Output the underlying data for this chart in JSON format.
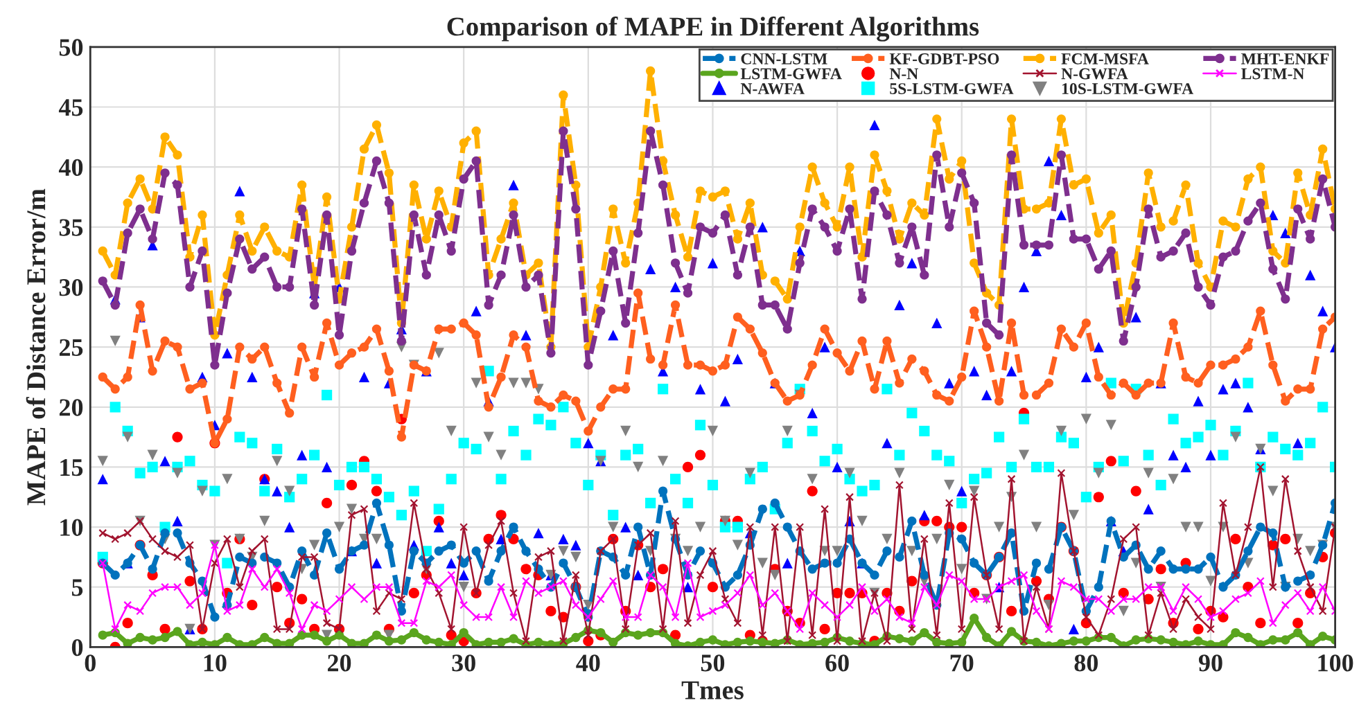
{
  "chart_data": {
    "type": "line",
    "title": "Comparison of MAPE in Different Algorithms",
    "xlabel": "Tmes",
    "ylabel": "MAPE of Distance Error/m",
    "x": [
      1,
      2,
      3,
      4,
      5,
      6,
      7,
      8,
      9,
      10,
      11,
      12,
      13,
      14,
      15,
      16,
      17,
      18,
      19,
      20,
      21,
      22,
      23,
      24,
      25,
      26,
      27,
      28,
      29,
      30,
      31,
      32,
      33,
      34,
      35,
      36,
      37,
      38,
      39,
      40,
      41,
      42,
      43,
      44,
      45,
      46,
      47,
      48,
      49,
      50,
      51,
      52,
      53,
      54,
      55,
      56,
      57,
      58,
      59,
      60,
      61,
      62,
      63,
      64,
      65,
      66,
      67,
      68,
      69,
      70,
      71,
      72,
      73,
      74,
      75,
      76,
      77,
      78,
      79,
      80,
      81,
      82,
      83,
      84,
      85,
      86,
      87,
      88,
      89,
      90,
      91,
      92,
      93,
      94,
      95,
      96,
      97,
      98,
      99,
      100
    ],
    "xlim": [
      0,
      100
    ],
    "xticks": [
      0,
      10,
      20,
      30,
      40,
      50,
      60,
      70,
      80,
      90,
      100
    ],
    "ylim": [
      0,
      50
    ],
    "yticks": [
      0,
      5,
      10,
      15,
      20,
      25,
      30,
      35,
      40,
      45,
      50
    ],
    "grid": true,
    "legend": "top right",
    "series": [
      {
        "name": "CNN-LSTM",
        "color": "#0072bd",
        "line_style": "dashed",
        "marker": "circle",
        "values": [
          7,
          6,
          7,
          8.5,
          6.5,
          9.5,
          9.5,
          7,
          5.5,
          2.5,
          3.5,
          7.5,
          7,
          7.5,
          7,
          5,
          8,
          6,
          9.5,
          6.5,
          8,
          8.5,
          12,
          8.5,
          3,
          8,
          7,
          8,
          8.5,
          7,
          8,
          5.5,
          8,
          10,
          8,
          6.5,
          5,
          7,
          5,
          2.5,
          8,
          7.5,
          6,
          10,
          6,
          13,
          9,
          6,
          8,
          7,
          5,
          6,
          8.5,
          11.5,
          12,
          10,
          8,
          6.5,
          7,
          7,
          9,
          7,
          6,
          8,
          7.5,
          10.5,
          6,
          3.5,
          9.5,
          9,
          7,
          6,
          7.5,
          9.5,
          3,
          7,
          6.5,
          10,
          8,
          3,
          5,
          10.5,
          7.5,
          8.5,
          6.5,
          8,
          6.5,
          6.5,
          6.5,
          7.5,
          5,
          6,
          8,
          10,
          9.5,
          5,
          5.5,
          6,
          8.5,
          12
        ]
      },
      {
        "name": "KF-GDBT-PSO",
        "color": "#ff5f1f",
        "line_style": "dashed",
        "marker": "circle",
        "values": [
          22.5,
          21.5,
          22.5,
          28.5,
          23,
          25.5,
          25,
          21.5,
          22,
          17,
          19,
          25,
          24,
          25,
          22,
          19.5,
          25,
          22.5,
          27,
          23.5,
          24.5,
          25,
          26.5,
          23,
          17.5,
          23.5,
          23,
          26.5,
          26.5,
          27,
          26,
          20,
          22.5,
          26,
          25,
          20.5,
          20,
          21,
          20.5,
          18,
          20,
          21.5,
          21.5,
          29.5,
          24,
          23.5,
          28.5,
          23.5,
          23.5,
          23,
          23.5,
          27.5,
          26.5,
          24.5,
          22,
          20.5,
          21,
          23.5,
          26.5,
          24.5,
          23,
          25.5,
          21.5,
          25.5,
          22,
          24,
          23,
          21,
          20.5,
          22.5,
          28,
          25,
          20.5,
          27,
          21,
          21,
          22,
          26.5,
          25,
          27,
          22.5,
          21,
          22,
          21,
          22,
          22,
          27,
          22.5,
          22,
          23.5,
          23.5,
          24,
          25,
          28,
          23.5,
          20.5,
          21.5,
          21.5,
          26.5,
          27.5
        ]
      },
      {
        "name": "FCM-MSFA",
        "color": "#ffb000",
        "line_style": "dashed",
        "marker": "circle",
        "values": [
          33,
          31,
          37,
          39,
          36.5,
          42.5,
          41,
          32.5,
          36,
          26,
          31,
          36,
          33,
          35,
          33,
          32.5,
          38.5,
          30,
          37.5,
          29,
          35,
          41.5,
          43.5,
          39.5,
          27,
          38.5,
          34,
          38,
          35,
          42,
          43,
          31,
          34,
          37,
          31,
          32,
          25,
          46,
          38.5,
          25,
          30,
          36.5,
          32,
          37,
          48,
          40.5,
          36,
          32.5,
          38,
          37.5,
          38,
          34,
          37,
          31,
          30.5,
          29,
          35,
          40,
          37,
          35,
          40,
          32.5,
          41,
          38,
          34,
          37,
          36,
          44,
          39,
          40.5,
          32,
          29.5,
          28.5,
          44,
          36.5,
          36.5,
          37,
          44,
          38.5,
          39,
          34.5,
          36,
          27,
          32,
          39.5,
          35,
          35.5,
          38.5,
          32,
          30,
          35.5,
          35,
          39,
          40,
          33,
          32,
          39.5,
          36,
          41.5,
          36.5
        ]
      },
      {
        "name": "MHT-ENKF",
        "color": "#7e2f8e",
        "line_style": "dashed",
        "marker": "circle",
        "values": [
          30.5,
          28.5,
          34.5,
          36.5,
          34,
          39.5,
          38.5,
          30,
          33,
          23.5,
          29.5,
          34,
          31.5,
          32.5,
          30,
          30,
          36.5,
          28.5,
          36,
          26,
          33,
          37,
          40.5,
          37,
          25.5,
          36,
          31,
          36,
          33,
          39,
          40.5,
          28.5,
          31,
          36,
          30,
          31,
          24.5,
          43,
          36.5,
          23.5,
          28,
          33,
          27,
          34.5,
          43,
          38.5,
          32,
          29.5,
          35,
          34.5,
          36,
          31,
          35,
          28.5,
          28.5,
          26.5,
          32,
          36.5,
          35,
          33,
          36.5,
          29,
          38,
          36,
          32,
          35,
          31,
          41,
          35,
          39.5,
          37,
          27,
          26,
          41,
          33.5,
          33.5,
          33.5,
          41,
          34,
          34,
          31.5,
          33,
          25.5,
          30,
          36.5,
          32.5,
          33,
          34.5,
          30,
          28.5,
          32.5,
          33,
          35.5,
          37,
          31.5,
          29,
          36.5,
          34,
          39,
          35
        ]
      },
      {
        "name": "LSTM-GWFA",
        "color": "#5aa51e",
        "line_style": "solid",
        "marker": "circle",
        "values": [
          1,
          1.2,
          0.3,
          0.8,
          0.6,
          0.8,
          1.3,
          0.2,
          0.4,
          0.2,
          0.8,
          0.2,
          0.2,
          0.8,
          0.3,
          0.3,
          1,
          1,
          0.5,
          1,
          0.3,
          0.3,
          1,
          0.5,
          0.6,
          1.2,
          0.6,
          0.4,
          0.2,
          1.2,
          0.2,
          0.4,
          0.4,
          0.7,
          0.2,
          0.4,
          0.2,
          0.3,
          0.8,
          1.4,
          1.2,
          0.4,
          1.2,
          1,
          1.2,
          1.2,
          0.3,
          0.1,
          0.4,
          0.6,
          0.2,
          0.4,
          0.5,
          0.4,
          0.3,
          0.6,
          0.2,
          0.3,
          0.4,
          0.8,
          0.5,
          0.3,
          0.2,
          0.9,
          0.7,
          0.5,
          1.2,
          0.4,
          0.3,
          0.4,
          2.4,
          0.8,
          0.1,
          1.3,
          0.5,
          0.4,
          0.1,
          0.3,
          0.5,
          0.5,
          0.8,
          0.8,
          0.1,
          0.6,
          0.7,
          0.6,
          0.4,
          0.2,
          0.5,
          0.2,
          0.2,
          1.2,
          0.8,
          0.2,
          0.6,
          0.6,
          1.2,
          0.2,
          0.9,
          0.6
        ]
      },
      {
        "name": "N-N",
        "type": "scatter",
        "color": "#ff0000",
        "marker": "circle",
        "values": [
          7,
          0,
          2,
          8.5,
          6,
          1.5,
          17.5,
          5.5,
          1.5,
          17,
          4.5,
          9,
          3.5,
          14,
          5,
          2,
          4,
          1.5,
          12,
          1.5,
          13.5,
          15.5,
          13,
          1.5,
          19,
          4.5,
          6,
          10.5,
          1,
          0.5,
          4.5,
          9,
          11,
          9,
          6.5,
          6,
          3,
          2.5,
          5,
          0.5,
          1,
          9,
          3,
          8.5,
          5,
          6.5,
          1,
          15,
          16,
          5,
          10.5,
          10.5,
          1,
          0.5,
          6.5,
          3,
          2,
          13,
          1.5,
          4.5,
          4.5,
          4.5,
          0.5,
          4.5,
          3,
          5.5,
          10.5,
          10.5,
          10,
          10,
          4.5,
          6,
          7.5,
          3,
          19.5,
          5.5,
          4,
          10,
          8,
          2,
          12.5,
          15.5,
          4.5,
          13,
          4,
          6.5,
          2,
          7,
          1.5,
          3,
          2.5,
          9,
          5,
          2,
          8.5,
          9,
          2,
          4.5,
          7.5,
          9.5
        ]
      },
      {
        "name": "N-GWFA",
        "color": "#a2142f",
        "line_style": "solid",
        "marker": "cross",
        "values": [
          9.5,
          9,
          9.5,
          10.5,
          9,
          8,
          7.5,
          8.5,
          1.5,
          7,
          9,
          5,
          8,
          9,
          1.5,
          1.5,
          7.5,
          7.5,
          2,
          1.5,
          11,
          11.5,
          3,
          4.5,
          4,
          12,
          6.5,
          4.5,
          1.5,
          10,
          4.5,
          8.5,
          10.5,
          4.5,
          0.5,
          7.5,
          8,
          0.5,
          6,
          1,
          8,
          9,
          1.5,
          8.5,
          9.5,
          1.5,
          10.5,
          2,
          6,
          8,
          4,
          2,
          10,
          1,
          10,
          0.5,
          10,
          1,
          11.5,
          0.5,
          12.5,
          0.5,
          4.5,
          0.5,
          13.5,
          1.5,
          9,
          1,
          12,
          1.5,
          12.5,
          6,
          1.5,
          14,
          0.5,
          5,
          1.5,
          14.5,
          8,
          2.5,
          1,
          4,
          9,
          10,
          1,
          4.5,
          1.5,
          4,
          2.5,
          1.5,
          12,
          6,
          10,
          15,
          5,
          14,
          8,
          5,
          3,
          10
        ]
      },
      {
        "name": "LSTM-N",
        "color": "#ff00ff",
        "line_style": "solid",
        "marker": "cross",
        "values": [
          7,
          1.5,
          3.5,
          3,
          4.5,
          5,
          5,
          3.5,
          4.5,
          8.5,
          3,
          3.5,
          6.5,
          5,
          6.5,
          4.5,
          1.5,
          3.5,
          3,
          4,
          5,
          4,
          5,
          5,
          2,
          2,
          5.5,
          5,
          6,
          3.5,
          2.5,
          2.5,
          5,
          2.5,
          5.5,
          4.5,
          5,
          5.5,
          3.5,
          2.5,
          4,
          5.5,
          2.5,
          2.5,
          6,
          5,
          2.5,
          7,
          2.5,
          3,
          3.5,
          4.5,
          6,
          3.5,
          4.5,
          3,
          1.5,
          4.5,
          3.5,
          2.5,
          3.5,
          5,
          3,
          4,
          2.5,
          2,
          5,
          3.5,
          6,
          5.5,
          4,
          4,
          5,
          5.5,
          6,
          3,
          1.5,
          5.5,
          5,
          4,
          4,
          3,
          4,
          4,
          5,
          5,
          3,
          5,
          4,
          2.5,
          3,
          4,
          4.5,
          5.5,
          2,
          3.5,
          4.5,
          3,
          5,
          3
        ]
      },
      {
        "name": "N-AWFA",
        "type": "scatter",
        "color": "#0000ff",
        "marker": "triangle",
        "values": [
          14,
          29,
          7,
          27.5,
          33.5,
          15.5,
          10.5,
          1.5,
          22.5,
          18.5,
          24.5,
          38,
          22.5,
          14,
          13,
          10,
          16,
          29.5,
          15,
          30,
          8,
          22.5,
          7,
          22,
          26.5,
          8.5,
          23,
          10,
          7,
          6,
          28,
          20.5,
          9,
          38.5,
          26,
          9.5,
          6,
          9,
          8.5,
          17,
          15.5,
          26,
          10,
          6,
          31.5,
          23,
          30,
          5,
          21.5,
          32,
          20.5,
          24,
          9.5,
          35,
          22,
          7,
          33,
          19.5,
          25,
          15,
          10.5,
          7,
          43.5,
          17,
          28.5,
          32,
          11,
          27,
          22,
          13,
          23,
          21,
          5,
          23,
          30,
          33,
          40.5,
          36,
          1.5,
          22.5,
          25,
          10.5,
          8,
          27.5,
          11.5,
          22,
          16,
          15,
          20.5,
          16,
          21.5,
          22,
          20,
          16.5,
          36,
          34.5,
          17,
          31,
          28,
          25
        ]
      },
      {
        "name": "5S-LSTM-GWFA",
        "type": "scatter",
        "color": "#00ffff",
        "marker": "square",
        "values": [
          7.5,
          20,
          18,
          14.5,
          15,
          10,
          15,
          15.5,
          13.5,
          13,
          7,
          17.5,
          17,
          13,
          16.5,
          12.5,
          14,
          16,
          21,
          13.5,
          15,
          15,
          14,
          12.5,
          11,
          13,
          8,
          11.5,
          14,
          17,
          16.5,
          23,
          14,
          18,
          16,
          19,
          18.5,
          20,
          17,
          13.5,
          16,
          11,
          16,
          16.5,
          12,
          21.5,
          14,
          12,
          18.5,
          13.5,
          10,
          10,
          14,
          15,
          11.5,
          17,
          21.5,
          18,
          15.5,
          16.5,
          14,
          13,
          13.5,
          21.5,
          16,
          19.5,
          18,
          16,
          15.5,
          12,
          14,
          14.5,
          17.5,
          15,
          19,
          15,
          15,
          17.5,
          17,
          12.5,
          15,
          22,
          15.5,
          21.5,
          16,
          13.5,
          19,
          17,
          17.5,
          18.5,
          16,
          18,
          22,
          15,
          17.5,
          16.5,
          16,
          17,
          20,
          15
        ]
      },
      {
        "name": "10S-LSTM-GWFA",
        "type": "scatter",
        "color": "#808080",
        "marker": "triangle_down",
        "values": [
          15.5,
          25.5,
          17.5,
          10.5,
          16,
          9,
          14.5,
          1.5,
          13,
          8.5,
          14,
          9,
          7.5,
          10.5,
          15.5,
          13,
          6.5,
          8.5,
          1,
          10,
          11.5,
          9,
          9,
          1,
          25,
          23.5,
          6.5,
          24.5,
          18,
          5,
          22,
          17.5,
          16,
          22,
          22,
          21.5,
          6,
          8,
          7.5,
          3.5,
          15.5,
          10,
          18,
          15,
          8,
          15.5,
          9,
          8,
          10,
          18,
          10.5,
          8.5,
          14.5,
          7,
          6,
          18,
          21,
          14,
          8,
          8,
          14.5,
          10.5,
          4.5,
          9,
          14.5,
          8,
          5.5,
          9,
          13.5,
          6.5,
          13,
          4,
          10,
          12.5,
          16,
          10,
          3.5,
          18,
          11,
          19,
          14.5,
          18.5,
          3,
          7,
          14.5,
          5,
          14,
          10,
          10,
          5.5,
          10,
          17.5,
          7,
          16.5,
          13,
          5,
          9,
          8,
          8.5,
          10
        ]
      }
    ]
  }
}
